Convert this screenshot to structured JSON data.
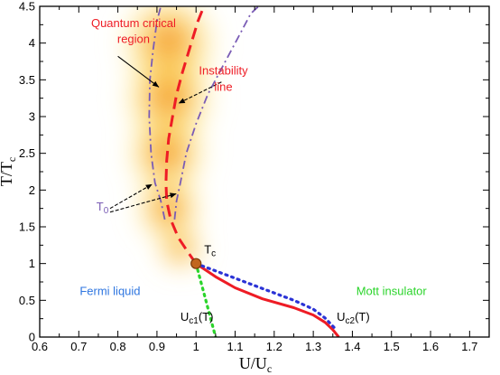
{
  "chart_data": {
    "type": "line",
    "xlabel": "U/U",
    "xlabel_sub": "c",
    "ylabel": "T/T",
    "ylabel_sub": "c",
    "xlim": [
      0.6,
      1.75
    ],
    "ylim": [
      0,
      4.5
    ],
    "x_ticks": [
      "0.6",
      "0.7",
      "0.8",
      "0.9",
      "1",
      "1.1",
      "1.2",
      "1.3",
      "1.4",
      "1.5",
      "1.6",
      "1.7"
    ],
    "y_ticks": [
      "0",
      "0.5",
      "1",
      "1.5",
      "2",
      "2.5",
      "3",
      "3.5",
      "4",
      "4.5"
    ],
    "grid": false,
    "series": [
      {
        "color": "#ee1c25",
        "style": "dashed",
        "x": [
          1.0,
          0.98,
          0.955,
          0.935,
          0.925,
          0.923,
          0.925,
          0.93,
          0.94,
          0.95,
          0.965,
          0.985,
          1.005,
          1.02
        ],
        "y": [
          1.0,
          1.15,
          1.35,
          1.6,
          1.85,
          2.1,
          2.4,
          2.7,
          3.0,
          3.3,
          3.6,
          3.95,
          4.3,
          4.5
        ]
      },
      {
        "color": "#ee1c25",
        "style": "solid",
        "x": [
          1.0,
          1.05,
          1.1,
          1.17,
          1.25,
          1.3,
          1.33,
          1.35,
          1.365
        ],
        "y": [
          1.0,
          0.82,
          0.67,
          0.52,
          0.4,
          0.3,
          0.2,
          0.1,
          0.0
        ]
      },
      {
        "color": "#2b33d6",
        "style": "dotted",
        "x": [
          1.0,
          1.05,
          1.1,
          1.15,
          1.2,
          1.25,
          1.3,
          1.33,
          1.355
        ],
        "y": [
          1.0,
          0.9,
          0.8,
          0.7,
          0.6,
          0.5,
          0.38,
          0.26,
          0.12
        ]
      },
      {
        "color": "#2bd42b",
        "style": "dotted",
        "x": [
          1.0,
          1.01,
          1.02,
          1.03,
          1.04,
          1.05
        ],
        "y": [
          1.0,
          0.8,
          0.6,
          0.4,
          0.2,
          0.0
        ]
      },
      {
        "color": "#7a5cb5",
        "style": "dashdot",
        "x": [
          0.92,
          0.91,
          0.895,
          0.885,
          0.88,
          0.882,
          0.89,
          0.9,
          0.91
        ],
        "y": [
          1.6,
          1.85,
          2.1,
          2.5,
          3.0,
          3.5,
          3.9,
          4.3,
          4.5
        ]
      },
      {
        "color": "#7a5cb5",
        "style": "dashdot",
        "x": [
          0.945,
          0.95,
          0.96,
          0.975,
          1.0,
          1.03,
          1.07,
          1.11,
          1.14,
          1.16
        ],
        "y": [
          1.6,
          1.85,
          2.1,
          2.5,
          2.9,
          3.3,
          3.7,
          4.1,
          4.4,
          4.5
        ]
      }
    ],
    "points": [
      {
        "label": "T",
        "label_sub": "c",
        "x": 1.0,
        "y": 1.0,
        "color": "#c1661f"
      }
    ],
    "annotations": [
      {
        "text": "Quantum critical",
        "color": "#ee1c25",
        "x": 0.84,
        "y": 4.22
      },
      {
        "text": "region",
        "color": "#ee1c25",
        "x": 0.84,
        "y": 4.0
      },
      {
        "text": "Instability",
        "color": "#ee1c25",
        "x": 1.07,
        "y": 3.57
      },
      {
        "text": "line",
        "color": "#ee1c25",
        "x": 1.07,
        "y": 3.35
      },
      {
        "text": "T",
        "sub": "0",
        "color": "#7a5cb5",
        "x": 0.745,
        "y": 1.72
      },
      {
        "text": "Fermi liquid",
        "color": "#2f76e0",
        "x": 0.78,
        "y": 0.57
      },
      {
        "text": "Mott insulator",
        "color": "#2bd42b",
        "x": 1.5,
        "y": 0.57
      },
      {
        "text": "U",
        "sub": "c1",
        "tail": "(T)",
        "color": "#000000",
        "x": 0.96,
        "y": 0.22
      },
      {
        "text": "U",
        "sub": "c2",
        "tail": "(T)",
        "color": "#000000",
        "x": 1.36,
        "y": 0.22
      }
    ]
  }
}
